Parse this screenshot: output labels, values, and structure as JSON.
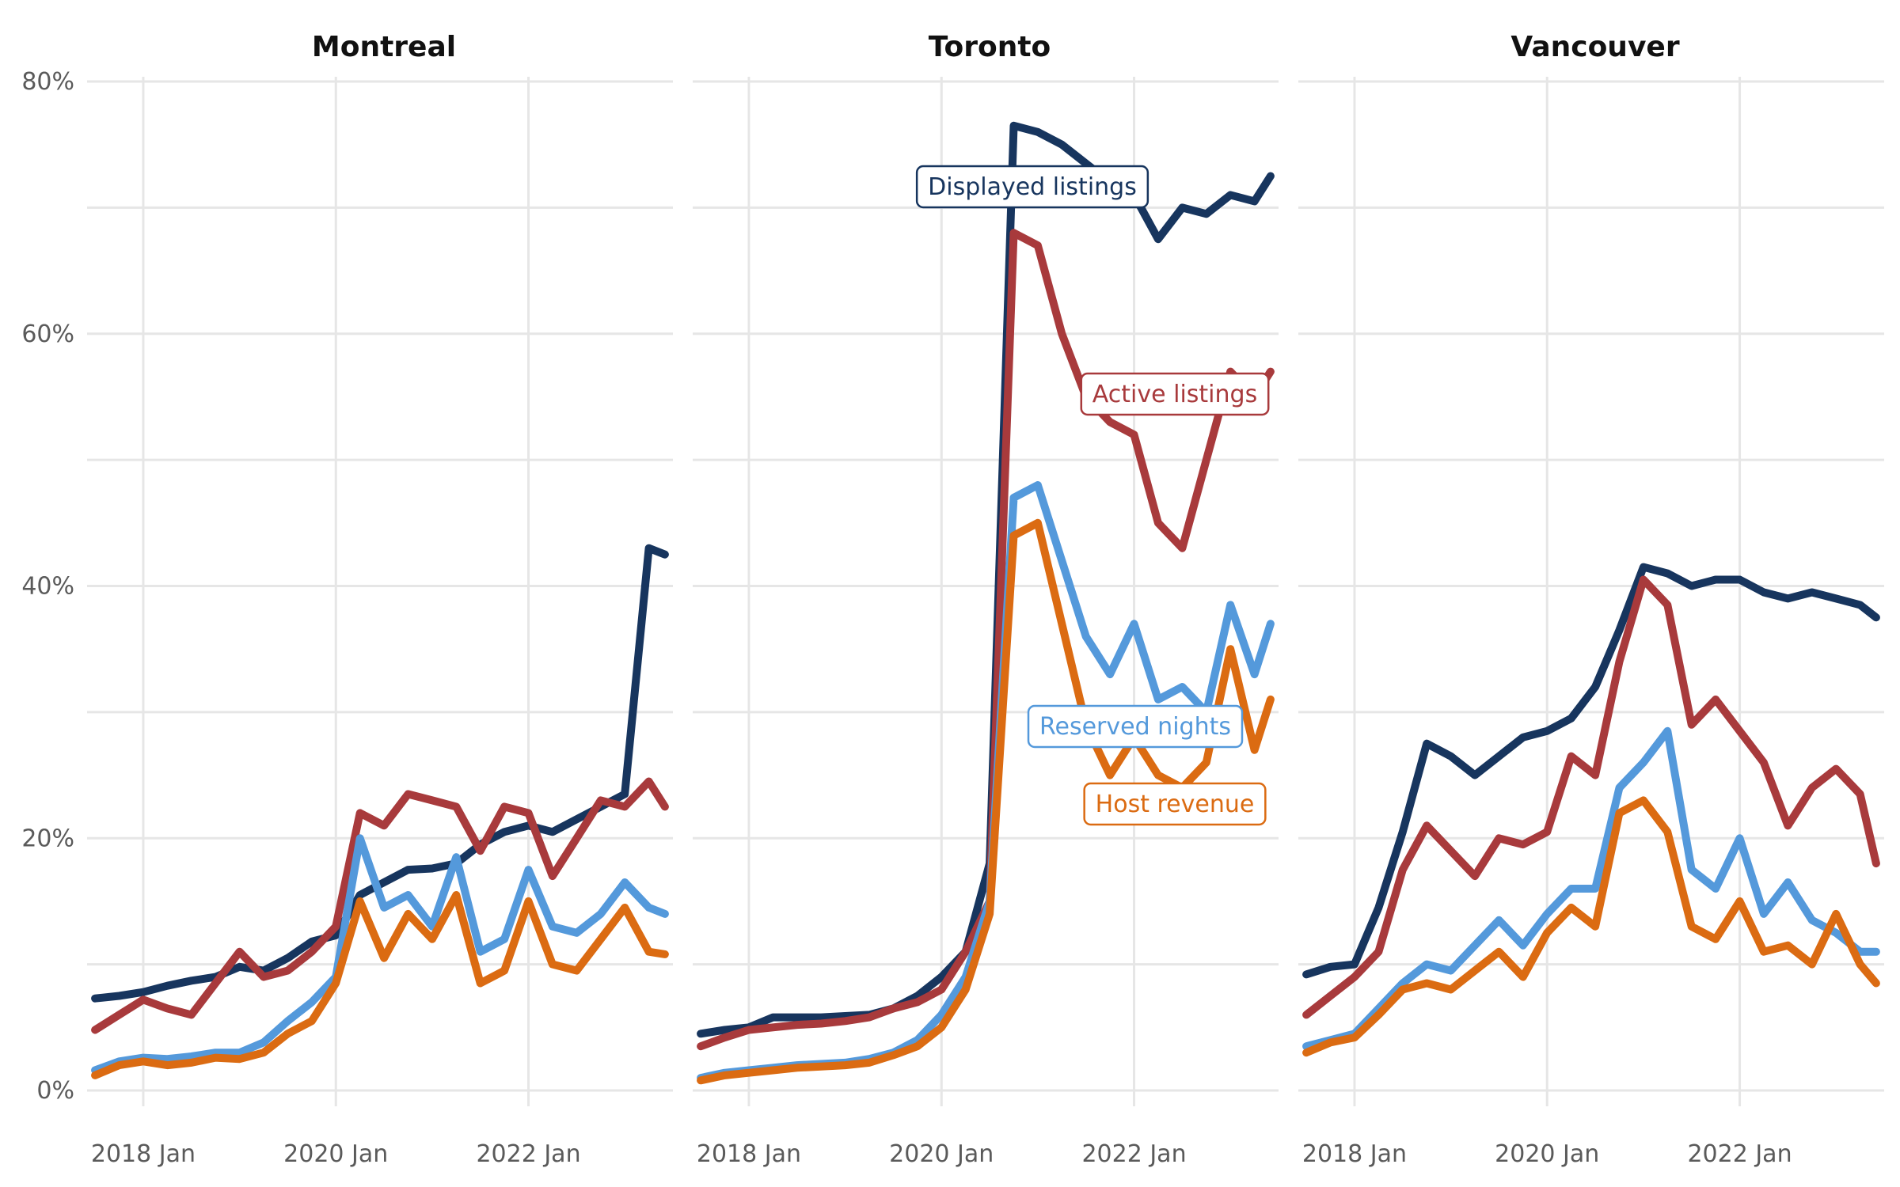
{
  "chart_data": [
    {
      "type": "line",
      "title": "Montreal",
      "x": [
        "2017-07",
        "2017-10",
        "2018-01",
        "2018-04",
        "2018-07",
        "2018-10",
        "2019-01",
        "2019-04",
        "2019-07",
        "2019-10",
        "2020-01",
        "2020-04",
        "2020-07",
        "2020-10",
        "2021-01",
        "2021-04",
        "2021-07",
        "2021-10",
        "2022-01",
        "2022-04",
        "2022-07",
        "2022-10",
        "2023-01",
        "2023-04",
        "2023-06"
      ],
      "series": [
        {
          "name": "Displayed listings",
          "color": "#17355e",
          "values": [
            7.3,
            7.5,
            7.8,
            8.3,
            8.7,
            9.0,
            9.8,
            9.5,
            10.5,
            11.8,
            12.3,
            15.5,
            16.5,
            17.5,
            17.6,
            18.0,
            19.5,
            20.5,
            21.0,
            20.5,
            21.5,
            22.5,
            23.5,
            43.0,
            42.5
          ]
        },
        {
          "name": "Active listings",
          "color": "#a83a3c",
          "values": [
            4.8,
            6.0,
            7.2,
            6.5,
            6.0,
            8.5,
            11.0,
            9.0,
            9.5,
            11.0,
            13.0,
            22.0,
            21.0,
            23.5,
            23.0,
            22.5,
            19.0,
            22.5,
            22.0,
            17.0,
            20.0,
            23.0,
            22.5,
            24.5,
            22.5
          ]
        },
        {
          "name": "Reserved nights",
          "color": "#5499db",
          "values": [
            1.6,
            2.3,
            2.6,
            2.5,
            2.7,
            3.0,
            3.0,
            3.8,
            5.5,
            7.0,
            9.0,
            20.0,
            14.5,
            15.5,
            13.0,
            18.5,
            11.0,
            12.0,
            17.5,
            13.0,
            12.5,
            14.0,
            16.5,
            14.5,
            14.0
          ]
        },
        {
          "name": "Host revenue",
          "color": "#db6b12",
          "values": [
            1.2,
            2.0,
            2.3,
            2.0,
            2.2,
            2.6,
            2.5,
            3.0,
            4.5,
            5.5,
            8.5,
            15.0,
            10.5,
            14.0,
            12.0,
            15.5,
            8.5,
            9.5,
            15.0,
            10.0,
            9.5,
            12.0,
            14.5,
            11.0,
            10.8
          ]
        }
      ]
    },
    {
      "type": "line",
      "title": "Toronto",
      "x": [
        "2017-07",
        "2017-10",
        "2018-01",
        "2018-04",
        "2018-07",
        "2018-10",
        "2019-01",
        "2019-04",
        "2019-07",
        "2019-10",
        "2020-01",
        "2020-04",
        "2020-07",
        "2020-10",
        "2021-01",
        "2021-04",
        "2021-07",
        "2021-10",
        "2022-01",
        "2022-04",
        "2022-07",
        "2022-10",
        "2023-01",
        "2023-04",
        "2023-06"
      ],
      "series": [
        {
          "name": "Displayed listings",
          "color": "#17355e",
          "values": [
            4.5,
            4.8,
            5.0,
            5.8,
            5.8,
            5.8,
            5.9,
            6.0,
            6.5,
            7.5,
            9.0,
            11.0,
            18.0,
            76.5,
            76.0,
            75.0,
            73.5,
            72.0,
            71.0,
            67.5,
            70.0,
            69.5,
            71.0,
            70.5,
            72.5
          ]
        },
        {
          "name": "Active listings",
          "color": "#a83a3c",
          "values": [
            3.5,
            4.2,
            4.8,
            5.0,
            5.2,
            5.3,
            5.5,
            5.8,
            6.5,
            7.0,
            8.0,
            11.0,
            15.0,
            68.0,
            67.0,
            60.0,
            55.0,
            53.0,
            52.0,
            45.0,
            43.0,
            50.0,
            57.0,
            55.0,
            57.0
          ]
        },
        {
          "name": "Reserved nights",
          "color": "#5499db",
          "values": [
            1.0,
            1.4,
            1.6,
            1.8,
            2.0,
            2.1,
            2.2,
            2.5,
            3.0,
            4.0,
            6.0,
            9.0,
            15.0,
            47.0,
            48.0,
            42.0,
            36.0,
            33.0,
            37.0,
            31.0,
            32.0,
            30.0,
            38.5,
            33.0,
            37.0
          ]
        },
        {
          "name": "Host revenue",
          "color": "#db6b12",
          "values": [
            0.8,
            1.2,
            1.4,
            1.6,
            1.8,
            1.9,
            2.0,
            2.2,
            2.8,
            3.5,
            5.0,
            8.0,
            14.0,
            44.0,
            45.0,
            37.0,
            29.0,
            25.0,
            28.0,
            25.0,
            24.0,
            26.0,
            35.0,
            27.0,
            31.0
          ]
        }
      ]
    },
    {
      "type": "line",
      "title": "Vancouver",
      "x": [
        "2017-07",
        "2017-10",
        "2018-01",
        "2018-04",
        "2018-07",
        "2018-10",
        "2019-01",
        "2019-04",
        "2019-07",
        "2019-10",
        "2020-01",
        "2020-04",
        "2020-07",
        "2020-10",
        "2021-01",
        "2021-04",
        "2021-07",
        "2021-10",
        "2022-01",
        "2022-04",
        "2022-07",
        "2022-10",
        "2023-01",
        "2023-04",
        "2023-06"
      ],
      "series": [
        {
          "name": "Displayed listings",
          "color": "#17355e",
          "values": [
            9.2,
            9.8,
            10.0,
            14.5,
            20.5,
            27.5,
            26.5,
            25.0,
            26.5,
            28.0,
            28.5,
            29.5,
            32.0,
            36.5,
            41.5,
            41.0,
            40.0,
            40.5,
            40.5,
            39.5,
            39.0,
            39.5,
            39.0,
            38.5,
            37.5
          ]
        },
        {
          "name": "Active listings",
          "color": "#a83a3c",
          "values": [
            6.0,
            7.5,
            9.0,
            11.0,
            17.5,
            21.0,
            19.0,
            17.0,
            20.0,
            19.5,
            20.5,
            26.5,
            25.0,
            34.0,
            40.5,
            38.5,
            29.0,
            31.0,
            28.5,
            26.0,
            21.0,
            24.0,
            25.5,
            23.5,
            18.0
          ]
        },
        {
          "name": "Reserved nights",
          "color": "#5499db",
          "values": [
            3.5,
            4.0,
            4.5,
            6.5,
            8.5,
            10.0,
            9.5,
            11.5,
            13.5,
            11.5,
            14.0,
            16.0,
            16.0,
            24.0,
            26.0,
            28.5,
            17.5,
            16.0,
            20.0,
            14.0,
            16.5,
            13.5,
            12.5,
            11.0,
            11.0
          ]
        },
        {
          "name": "Host revenue",
          "color": "#db6b12",
          "values": [
            3.0,
            3.8,
            4.2,
            6.0,
            8.0,
            8.5,
            8.0,
            9.5,
            11.0,
            9.0,
            12.5,
            14.5,
            13.0,
            22.0,
            23.0,
            20.5,
            13.0,
            12.0,
            15.0,
            11.0,
            11.5,
            10.0,
            14.0,
            10.0,
            8.5
          ]
        }
      ]
    }
  ],
  "axes": {
    "y_ticks": [
      0,
      20,
      40,
      60,
      80
    ],
    "y_tick_labels": [
      "0%",
      "20%",
      "40%",
      "60%",
      "80%"
    ],
    "ylim": [
      0,
      80
    ],
    "x_tick_labels": [
      "2018 Jan",
      "2020 Jan",
      "2022 Jan"
    ],
    "x_ticks": [
      "2018-01",
      "2020-01",
      "2022-01"
    ],
    "xlim": [
      "2017-07",
      "2023-06"
    ],
    "grid": true
  },
  "annotations": [
    {
      "panel": 1,
      "text": "Displayed listings",
      "color": "#17355e"
    },
    {
      "panel": 1,
      "text": "Active listings",
      "color": "#a83a3c"
    },
    {
      "panel": 1,
      "text": "Reserved nights",
      "color": "#5499db"
    },
    {
      "panel": 1,
      "text": "Host revenue",
      "color": "#db6b12"
    }
  ]
}
